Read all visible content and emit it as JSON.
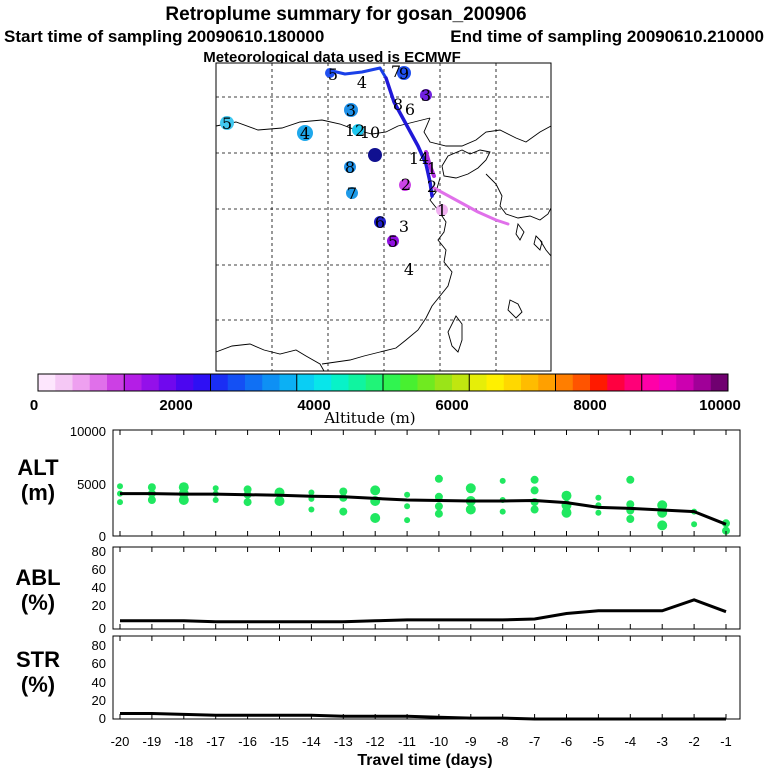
{
  "header": {
    "title": "Retroplume summary for gosan_200906",
    "start_label": "Start time of sampling 20090610.180000",
    "end_label": "End time of sampling 20090610.210000",
    "met_label": "Meteorological data used is ECMWF"
  },
  "colorbar": {
    "label": "Altitude (m)",
    "ticks": [
      "0",
      "2000",
      "4000",
      "6000",
      "8000",
      "10000"
    ],
    "range": [
      0,
      10000
    ],
    "colors": [
      "#fde6fd",
      "#f5c8f5",
      "#eea0f0",
      "#e070ea",
      "#cc40e4",
      "#b41ee6",
      "#9410ea",
      "#7008ee",
      "#4c06f0",
      "#2e10f4",
      "#1a2ef4",
      "#1450f4",
      "#1070f4",
      "#0e90f4",
      "#0cb0f4",
      "#0acef4",
      "#08e6ea",
      "#08f2c8",
      "#10f4a0",
      "#20f478",
      "#30f450",
      "#48f030",
      "#70ea20",
      "#9ae418",
      "#c0e610",
      "#e6ee08",
      "#fff000",
      "#ffd800",
      "#ffbc00",
      "#ffa000",
      "#ff7e00",
      "#ff5400",
      "#ff1a00",
      "#ff0040",
      "#ff0078",
      "#ff00a8",
      "#f000c0",
      "#cc00b0",
      "#a00098",
      "#700070"
    ]
  },
  "map": {
    "trajectory_labels": [
      {
        "text": "5",
        "color": "#40c8f0"
      },
      {
        "text": "4",
        "color": "#1ea8ec"
      },
      {
        "text": "3",
        "color": "#1e90e8"
      },
      {
        "text": "12",
        "color": "#1ec8f0"
      },
      {
        "text": "10",
        "color": "#101090"
      },
      {
        "text": "8",
        "color": "#1e90e8"
      },
      {
        "text": "7",
        "color": "#1e9ae8"
      },
      {
        "text": "6",
        "color": "#2020c8"
      },
      {
        "text": "5",
        "color": "#9010e0"
      },
      {
        "text": "3",
        "color": "#cc44e6"
      },
      {
        "text": "2",
        "color": "#cc44e6"
      },
      {
        "text": "4",
        "color": "#8020d8"
      },
      {
        "text": "1",
        "color": "#e070ea"
      },
      {
        "text": "2",
        "color": "#101090"
      },
      {
        "text": "5",
        "color": "#2050f0"
      },
      {
        "text": "3",
        "color": "#7020e0"
      },
      {
        "text": "4",
        "color": "#3020d8"
      },
      {
        "text": "8",
        "color": "#7020e0"
      },
      {
        "text": "14",
        "color": "#4020e0"
      },
      {
        "text": "1",
        "color": "#b030e0"
      },
      {
        "text": "9",
        "color": "#2020c8"
      },
      {
        "text": "6",
        "color": "#2020c8"
      },
      {
        "text": "7",
        "color": "#3030e0"
      }
    ]
  },
  "chart_data": [
    {
      "type": "scatter",
      "panel": "ALT",
      "ylabel_top": "ALT",
      "ylabel_bottom": "(m)",
      "xlabel": "Travel time (days)",
      "xlim": [
        -20,
        -1
      ],
      "ylim": [
        0,
        10000
      ],
      "yticks": [
        "10000",
        "5000",
        "0"
      ],
      "xticks": [
        "-20",
        "-19",
        "-18",
        "-17",
        "-16",
        "-15",
        "-14",
        "-13",
        "-12",
        "-11",
        "-10",
        "-9",
        "-8",
        "-7",
        "-6",
        "-5",
        "-4",
        "-3",
        "-2",
        "-1"
      ],
      "line_color": "#000000",
      "point_color": "#20e860",
      "mean_line": {
        "x": [
          -20,
          -19,
          -18,
          -17,
          -16,
          -15,
          -14,
          -13,
          -12,
          -11,
          -10,
          -9,
          -8,
          -7,
          -6,
          -5,
          -4,
          -3,
          -2,
          -1
        ],
        "y": [
          4000,
          4000,
          3950,
          3950,
          3900,
          3850,
          3750,
          3700,
          3550,
          3400,
          3350,
          3300,
          3300,
          3350,
          3150,
          2700,
          2600,
          2450,
          2300,
          1100
        ]
      },
      "clusters": [
        {
          "x": -20,
          "y": [
            3200,
            4000,
            4700
          ]
        },
        {
          "x": -19,
          "y": [
            3400,
            4000,
            4600
          ]
        },
        {
          "x": -18,
          "y": [
            3400,
            4000,
            4600
          ]
        },
        {
          "x": -17,
          "y": [
            3400,
            4000,
            4500
          ]
        },
        {
          "x": -16,
          "y": [
            3200,
            3900,
            4400
          ]
        },
        {
          "x": -15,
          "y": [
            3300,
            4100
          ]
        },
        {
          "x": -14,
          "y": [
            2500,
            3500,
            4100
          ]
        },
        {
          "x": -13,
          "y": [
            2300,
            3600,
            4200
          ]
        },
        {
          "x": -12,
          "y": [
            1700,
            3300,
            4300
          ]
        },
        {
          "x": -11,
          "y": [
            1500,
            2800,
            3900
          ]
        },
        {
          "x": -10,
          "y": [
            2100,
            2800,
            3700,
            5400
          ]
        },
        {
          "x": -9,
          "y": [
            2500,
            3300,
            4500
          ]
        },
        {
          "x": -8,
          "y": [
            2300,
            3400,
            5200
          ]
        },
        {
          "x": -7,
          "y": [
            2500,
            3200,
            4300,
            5300
          ]
        },
        {
          "x": -6,
          "y": [
            2200,
            2900,
            3800
          ]
        },
        {
          "x": -5,
          "y": [
            2200,
            2900,
            3600
          ]
        },
        {
          "x": -4,
          "y": [
            1600,
            2400,
            3000,
            5300
          ]
        },
        {
          "x": -3,
          "y": [
            1000,
            2200,
            2900
          ]
        },
        {
          "x": -2,
          "y": [
            1100,
            2300
          ]
        },
        {
          "x": -1,
          "y": [
            500,
            1200
          ]
        }
      ]
    },
    {
      "type": "line",
      "panel": "ABL",
      "ylabel_top": "ABL",
      "ylabel_bottom": "(%)",
      "xlim": [
        -20,
        -1
      ],
      "ylim": [
        0,
        90
      ],
      "yticks": [
        "80",
        "60",
        "40",
        "20",
        "0"
      ],
      "x": [
        -20,
        -19,
        -18,
        -17,
        -16,
        -15,
        -14,
        -13,
        -12,
        -11,
        -10,
        -9,
        -8,
        -7,
        -6,
        -5,
        -4,
        -3,
        -2,
        -1
      ],
      "y": [
        9,
        9,
        9,
        8,
        8,
        8,
        8,
        8,
        9,
        10,
        10,
        10,
        10,
        11,
        17,
        20,
        20,
        20,
        32,
        19
      ]
    },
    {
      "type": "line",
      "panel": "STR",
      "ylabel_top": "STR",
      "ylabel_bottom": "(%)",
      "xlim": [
        -20,
        -1
      ],
      "ylim": [
        0,
        90
      ],
      "yticks": [
        "80",
        "60",
        "40",
        "20",
        "0"
      ],
      "x": [
        -20,
        -19,
        -18,
        -17,
        -16,
        -15,
        -14,
        -13,
        -12,
        -11,
        -10,
        -9,
        -8,
        -7,
        -6,
        -5,
        -4,
        -3,
        -2,
        -1
      ],
      "y": [
        6,
        6,
        5,
        4,
        4,
        4,
        4,
        3,
        3,
        3,
        2,
        1,
        1,
        0,
        0,
        0,
        0,
        0,
        0,
        0
      ]
    }
  ]
}
